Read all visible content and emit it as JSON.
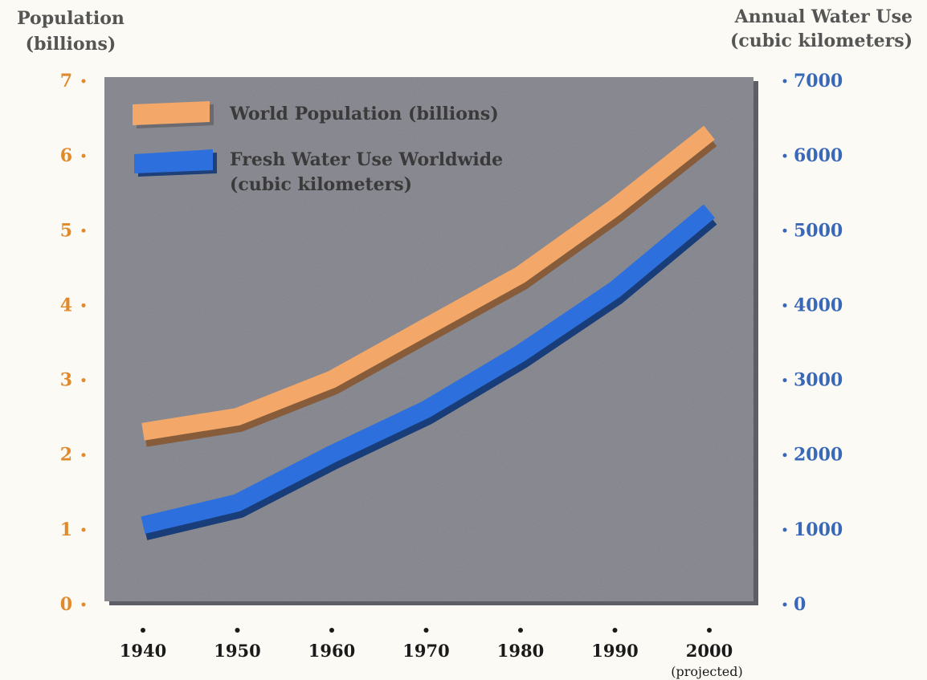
{
  "chart_data": {
    "type": "line",
    "left_axis_title": [
      "Population",
      "(billions)"
    ],
    "right_axis_title": [
      "Annual Water Use",
      "(cubic kilometers)"
    ],
    "x": [
      "1940",
      "1950",
      "1960",
      "1970",
      "1980",
      "1990",
      "2000"
    ],
    "x_note": "(projected)",
    "left_ylim": [
      0,
      7
    ],
    "left_ticks": [
      "0",
      "1",
      "2",
      "3",
      "4",
      "5",
      "6",
      "7"
    ],
    "right_ylim": [
      0,
      7000
    ],
    "right_ticks": [
      "0",
      "1000",
      "2000",
      "3000",
      "4000",
      "5000",
      "6000",
      "7000"
    ],
    "grid": false,
    "legend_position": "top-left",
    "series": [
      {
        "name": "World Population (billions)",
        "axis": "left",
        "values": [
          2.3,
          2.5,
          3.0,
          3.7,
          4.4,
          5.3,
          6.3
        ],
        "color": "#f3a86a"
      },
      {
        "name": "Fresh Water Use Worldwide (cubic kilometers)",
        "name_lines": [
          "Fresh Water Use Worldwide",
          "(cubic kilometers)"
        ],
        "axis": "right",
        "values": [
          1050,
          1350,
          2000,
          2600,
          3350,
          4200,
          5250
        ],
        "color": "#2d6fdc"
      }
    ],
    "plot_background": "#8e8e96",
    "left_tick_color": "#e08a2c",
    "right_tick_color": "#3a68b8"
  }
}
